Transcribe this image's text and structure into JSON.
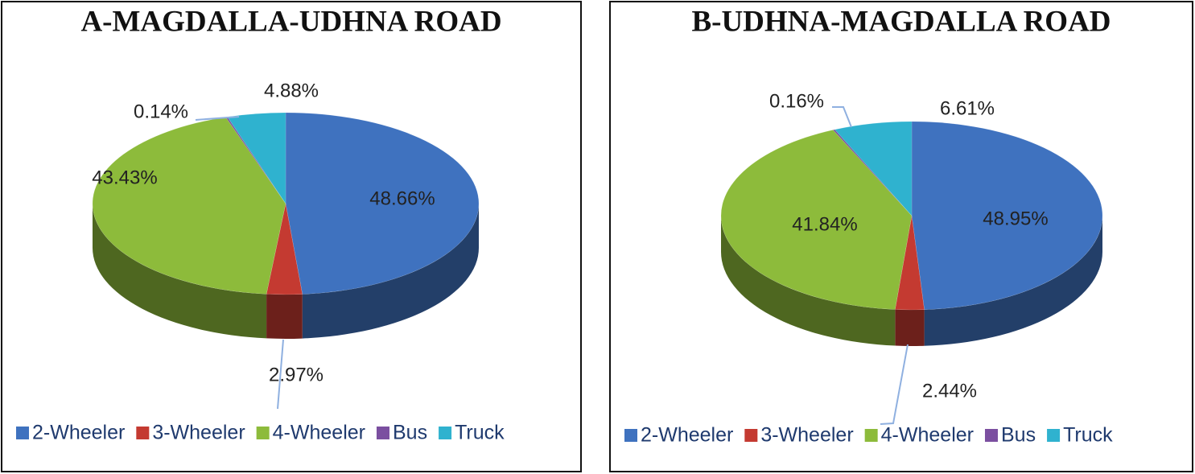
{
  "chart_data": [
    {
      "type": "pie",
      "title": "A-MAGDALLA-UDHNA ROAD",
      "categories": [
        "2-Wheeler",
        "3-Wheeler",
        "4-Wheeler",
        "Bus",
        "Truck"
      ],
      "values": [
        48.66,
        2.97,
        43.43,
        0.14,
        4.88
      ],
      "value_labels": [
        "48.66%",
        "2.97%",
        "43.43%",
        "0.14%",
        "4.88%"
      ],
      "colors": [
        "#3f72bf",
        "#c43a31",
        "#8dbb3b",
        "#7b4fa0",
        "#2fb2cf"
      ],
      "legend": "bottom"
    },
    {
      "type": "pie",
      "title": "B-UDHNA-MAGDALLA ROAD",
      "categories": [
        "2-Wheeler",
        "3-Wheeler",
        "4-Wheeler",
        "Bus",
        "Truck"
      ],
      "values": [
        48.95,
        2.44,
        41.84,
        0.16,
        6.61
      ],
      "value_labels": [
        "48.95%",
        "2.44%",
        "41.84%",
        "0.16%",
        "6.61%"
      ],
      "colors": [
        "#3f72bf",
        "#c43a31",
        "#8dbb3b",
        "#7b4fa0",
        "#2fb2cf"
      ],
      "legend": "bottom"
    }
  ]
}
